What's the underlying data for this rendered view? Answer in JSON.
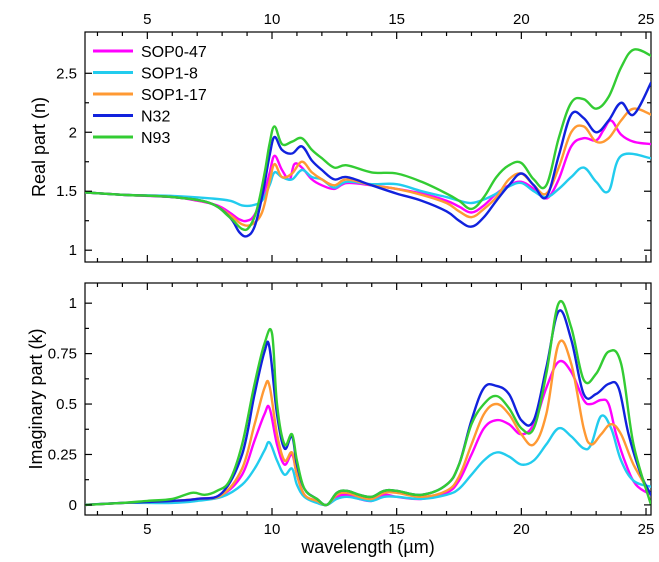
{
  "chart_data": [
    {
      "type": "line",
      "panel": "top",
      "ylabel": "Real part (n)",
      "xlim": [
        2.5,
        25.2
      ],
      "ylim": [
        0.9,
        2.85
      ],
      "xticks": [
        5,
        10,
        15,
        20,
        25
      ],
      "xtick_labels": [
        "5",
        "10",
        "15",
        "20",
        "25"
      ],
      "yticks": [
        1,
        1.5,
        2,
        2.5
      ],
      "ytick_labels": [
        "1",
        "1.5",
        "2",
        "2.5"
      ],
      "legend": {
        "placement": "top-left",
        "entries": [
          "SOP0-47",
          "SOP1-8",
          "SOP1-17",
          "N32",
          "N93"
        ]
      },
      "series": [
        {
          "name": "SOP0-47",
          "color": "#ff00ff",
          "x": [
            2.5,
            4,
            6,
            7,
            7.8,
            8.3,
            8.7,
            9.0,
            9.3,
            9.7,
            9.9,
            10.1,
            10.4,
            10.7,
            10.9,
            11.2,
            11.6,
            12,
            12.5,
            13,
            14,
            15,
            16,
            17,
            17.5,
            18,
            18.5,
            19,
            19.5,
            20,
            20.5,
            20.8,
            21.1,
            21.5,
            22,
            22.5,
            23,
            23.3,
            23.6,
            24,
            24.5,
            25.2
          ],
          "y": [
            1.49,
            1.47,
            1.45,
            1.42,
            1.38,
            1.32,
            1.26,
            1.25,
            1.3,
            1.5,
            1.65,
            1.8,
            1.68,
            1.6,
            1.73,
            1.7,
            1.6,
            1.55,
            1.52,
            1.57,
            1.55,
            1.52,
            1.48,
            1.42,
            1.37,
            1.32,
            1.38,
            1.48,
            1.55,
            1.58,
            1.52,
            1.46,
            1.45,
            1.6,
            1.88,
            1.95,
            1.93,
            2.02,
            2.1,
            1.98,
            1.92,
            1.9
          ]
        },
        {
          "name": "SOP1-8",
          "color": "#22ccee",
          "x": [
            2.5,
            4,
            6,
            7.5,
            8.3,
            8.8,
            9.2,
            9.6,
            9.9,
            10.1,
            10.4,
            10.8,
            11.2,
            11.6,
            12,
            12.5,
            13,
            14,
            15,
            16,
            17,
            17.5,
            18,
            18.5,
            19,
            19.5,
            20,
            20.5,
            21,
            21.5,
            22,
            22.5,
            23,
            23.5,
            24,
            25.2
          ],
          "y": [
            1.49,
            1.47,
            1.46,
            1.44,
            1.42,
            1.38,
            1.38,
            1.42,
            1.55,
            1.66,
            1.62,
            1.6,
            1.68,
            1.62,
            1.6,
            1.53,
            1.58,
            1.56,
            1.56,
            1.5,
            1.45,
            1.42,
            1.4,
            1.43,
            1.48,
            1.54,
            1.57,
            1.5,
            1.45,
            1.52,
            1.62,
            1.7,
            1.58,
            1.5,
            1.8,
            1.78
          ]
        },
        {
          "name": "SOP1-17",
          "color": "#ff9933",
          "x": [
            2.5,
            4,
            6,
            7.5,
            8.3,
            8.8,
            9.2,
            9.6,
            9.9,
            10.1,
            10.4,
            10.8,
            11.2,
            11.6,
            12,
            12.5,
            13,
            14,
            15,
            16,
            17,
            17.5,
            18,
            18.5,
            19,
            19.5,
            20,
            20.5,
            21,
            21.5,
            22,
            22.5,
            23,
            23.5,
            24,
            24.5,
            25.2
          ],
          "y": [
            1.49,
            1.47,
            1.45,
            1.4,
            1.3,
            1.22,
            1.22,
            1.32,
            1.58,
            1.73,
            1.62,
            1.65,
            1.75,
            1.66,
            1.6,
            1.55,
            1.6,
            1.55,
            1.52,
            1.47,
            1.4,
            1.33,
            1.28,
            1.35,
            1.45,
            1.6,
            1.65,
            1.55,
            1.48,
            1.7,
            2.0,
            2.05,
            1.92,
            1.95,
            2.1,
            2.2,
            2.15
          ]
        },
        {
          "name": "N32",
          "color": "#1122dd",
          "x": [
            2.5,
            4,
            6,
            7.5,
            8.3,
            8.7,
            9.0,
            9.3,
            9.6,
            9.9,
            10.1,
            10.4,
            10.8,
            11.2,
            11.6,
            12,
            12.5,
            13,
            14,
            15,
            16,
            17,
            17.5,
            18,
            18.5,
            19,
            19.5,
            20,
            20.5,
            21,
            21.5,
            22,
            22.5,
            23,
            23.5,
            24,
            24.5,
            25.2
          ],
          "y": [
            1.49,
            1.47,
            1.45,
            1.4,
            1.28,
            1.15,
            1.12,
            1.2,
            1.45,
            1.8,
            1.96,
            1.85,
            1.82,
            1.88,
            1.76,
            1.68,
            1.6,
            1.62,
            1.55,
            1.48,
            1.42,
            1.33,
            1.25,
            1.2,
            1.28,
            1.42,
            1.55,
            1.65,
            1.55,
            1.45,
            1.8,
            2.15,
            2.12,
            2.0,
            2.1,
            2.25,
            2.15,
            2.42
          ]
        },
        {
          "name": "N93",
          "color": "#33cc33",
          "x": [
            2.5,
            4,
            6,
            7.5,
            8.3,
            8.8,
            9.1,
            9.4,
            9.7,
            9.9,
            10.1,
            10.4,
            10.8,
            11.2,
            11.6,
            12,
            12.5,
            13,
            14,
            15,
            16,
            17,
            17.5,
            18,
            18.5,
            19,
            19.5,
            20,
            20.5,
            21,
            21.5,
            22,
            22.5,
            23,
            23.5,
            24,
            24.5,
            25.2
          ],
          "y": [
            1.49,
            1.47,
            1.45,
            1.4,
            1.28,
            1.18,
            1.2,
            1.35,
            1.65,
            1.9,
            2.05,
            1.9,
            1.92,
            1.95,
            1.85,
            1.78,
            1.7,
            1.72,
            1.66,
            1.65,
            1.58,
            1.48,
            1.42,
            1.35,
            1.45,
            1.62,
            1.72,
            1.74,
            1.6,
            1.55,
            1.95,
            2.25,
            2.28,
            2.2,
            2.3,
            2.55,
            2.7,
            2.65
          ]
        }
      ]
    },
    {
      "type": "line",
      "panel": "bottom",
      "xlabel": "wavelength (µm)",
      "ylabel": "Imaginary part (k)",
      "xlim": [
        2.5,
        25.2
      ],
      "ylim": [
        -0.05,
        1.1
      ],
      "xticks": [
        5,
        10,
        15,
        20,
        25
      ],
      "xtick_labels": [
        "5",
        "10",
        "15",
        "20",
        "25"
      ],
      "yticks": [
        0,
        0.25,
        0.5,
        0.75,
        1
      ],
      "ytick_labels": [
        "0",
        "0.25",
        "0.5",
        "0.75",
        "1"
      ],
      "series": [
        {
          "name": "SOP0-47",
          "color": "#ff00ff",
          "x": [
            2.5,
            4,
            6,
            7,
            8,
            8.8,
            9.3,
            9.7,
            9.9,
            10.2,
            10.5,
            10.8,
            11.0,
            11.3,
            11.8,
            12.2,
            12.6,
            13,
            13.5,
            14,
            14.5,
            15,
            16,
            17,
            17.5,
            18,
            18.5,
            19,
            19.5,
            20,
            20.5,
            21,
            21.5,
            22,
            22.5,
            22.8,
            23.2,
            23.5,
            23.8,
            24.2,
            24.6,
            25.2
          ],
          "y": [
            0.0,
            0.01,
            0.02,
            0.03,
            0.05,
            0.15,
            0.32,
            0.45,
            0.48,
            0.3,
            0.2,
            0.25,
            0.15,
            0.05,
            0.02,
            0.0,
            0.04,
            0.05,
            0.03,
            0.02,
            0.05,
            0.04,
            0.03,
            0.06,
            0.12,
            0.25,
            0.38,
            0.42,
            0.4,
            0.35,
            0.4,
            0.58,
            0.71,
            0.66,
            0.52,
            0.5,
            0.52,
            0.5,
            0.35,
            0.2,
            0.1,
            0.05
          ]
        },
        {
          "name": "SOP1-8",
          "color": "#22ccee",
          "x": [
            2.5,
            4,
            6,
            7,
            8,
            8.8,
            9.3,
            9.7,
            9.9,
            10.2,
            10.5,
            10.8,
            11.0,
            11.3,
            11.8,
            12.2,
            12.6,
            13,
            13.5,
            14,
            14.5,
            15,
            16,
            17,
            17.5,
            18,
            18.5,
            19,
            19.5,
            20,
            20.5,
            21,
            21.5,
            22,
            22.5,
            22.8,
            23.2,
            23.6,
            24,
            24.5,
            25.2
          ],
          "y": [
            0.0,
            0.01,
            0.01,
            0.02,
            0.04,
            0.1,
            0.18,
            0.27,
            0.31,
            0.22,
            0.15,
            0.18,
            0.1,
            0.04,
            0.01,
            0.0,
            0.03,
            0.04,
            0.03,
            0.02,
            0.04,
            0.04,
            0.03,
            0.05,
            0.08,
            0.15,
            0.22,
            0.26,
            0.24,
            0.2,
            0.22,
            0.3,
            0.38,
            0.34,
            0.28,
            0.3,
            0.44,
            0.38,
            0.22,
            0.12,
            0.09
          ]
        },
        {
          "name": "SOP1-17",
          "color": "#ff9933",
          "x": [
            2.5,
            4,
            6,
            7,
            8,
            8.8,
            9.3,
            9.7,
            9.9,
            10.2,
            10.5,
            10.8,
            11.0,
            11.3,
            11.8,
            12.2,
            12.6,
            13,
            13.5,
            14,
            14.5,
            15,
            16,
            17,
            17.5,
            18,
            18.5,
            19,
            19.5,
            20,
            20.5,
            21,
            21.5,
            22,
            22.5,
            22.8,
            23.2,
            23.6,
            24,
            24.5,
            25.2
          ],
          "y": [
            0.0,
            0.01,
            0.02,
            0.03,
            0.05,
            0.18,
            0.4,
            0.58,
            0.59,
            0.35,
            0.22,
            0.26,
            0.15,
            0.05,
            0.02,
            0.0,
            0.05,
            0.06,
            0.04,
            0.03,
            0.06,
            0.06,
            0.04,
            0.07,
            0.14,
            0.3,
            0.45,
            0.5,
            0.45,
            0.35,
            0.3,
            0.45,
            0.8,
            0.7,
            0.38,
            0.3,
            0.35,
            0.4,
            0.35,
            0.2,
            0.05
          ]
        },
        {
          "name": "N32",
          "color": "#1122dd",
          "x": [
            2.5,
            4,
            6,
            7,
            8,
            8.8,
            9.3,
            9.7,
            9.9,
            10.2,
            10.5,
            10.8,
            11.0,
            11.3,
            11.8,
            12.2,
            12.6,
            13,
            13.5,
            14,
            14.5,
            15,
            16,
            17,
            17.5,
            18,
            18.5,
            19,
            19.5,
            20,
            20.5,
            21,
            21.5,
            22,
            22.5,
            23,
            23.5,
            23.9,
            24.3,
            24.8,
            25.2
          ],
          "y": [
            0.0,
            0.01,
            0.02,
            0.03,
            0.06,
            0.25,
            0.55,
            0.76,
            0.78,
            0.45,
            0.28,
            0.34,
            0.2,
            0.08,
            0.03,
            0.0,
            0.06,
            0.07,
            0.05,
            0.04,
            0.07,
            0.07,
            0.05,
            0.1,
            0.2,
            0.42,
            0.58,
            0.59,
            0.55,
            0.42,
            0.42,
            0.68,
            0.96,
            0.82,
            0.55,
            0.55,
            0.6,
            0.58,
            0.35,
            0.15,
            0.05
          ]
        },
        {
          "name": "N93",
          "color": "#33cc33",
          "x": [
            2.5,
            4,
            5,
            6,
            6.8,
            7.3,
            7.8,
            8.3,
            8.8,
            9.3,
            9.7,
            10.0,
            10.2,
            10.5,
            10.8,
            11.0,
            11.3,
            11.8,
            12.2,
            12.6,
            13,
            13.5,
            14,
            14.5,
            15,
            16,
            17,
            17.5,
            18,
            18.5,
            19,
            19.5,
            20,
            20.5,
            21,
            21.5,
            22,
            22.5,
            23,
            23.5,
            24,
            24.5,
            25.2
          ],
          "y": [
            0.0,
            0.01,
            0.02,
            0.03,
            0.06,
            0.05,
            0.07,
            0.12,
            0.3,
            0.6,
            0.8,
            0.85,
            0.5,
            0.3,
            0.35,
            0.22,
            0.08,
            0.03,
            0.0,
            0.06,
            0.07,
            0.05,
            0.04,
            0.07,
            0.07,
            0.05,
            0.1,
            0.2,
            0.4,
            0.5,
            0.54,
            0.48,
            0.38,
            0.38,
            0.65,
            1.0,
            0.88,
            0.62,
            0.65,
            0.76,
            0.7,
            0.3,
            0.0
          ]
        }
      ]
    }
  ]
}
